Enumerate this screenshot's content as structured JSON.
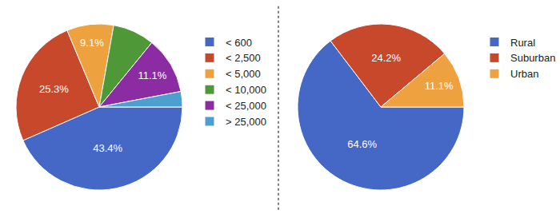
{
  "chart_data": [
    {
      "type": "pie",
      "categories": [
        "< 600",
        "< 2,500",
        "< 5,000",
        "< 10,000",
        "< 25,000",
        "> 25,000"
      ],
      "values": [
        43.4,
        25.3,
        9.1,
        8.1,
        11.1,
        3.0
      ],
      "value_labels": [
        "43.4%",
        "25.3%",
        "9.1%",
        null,
        "11.1%",
        null
      ],
      "colors": [
        "#4567c6",
        "#c8482c",
        "#eea23f",
        "#4e9838",
        "#8c2ca2",
        "#4d9fcf"
      ],
      "data_labels": true,
      "legend": "right"
    },
    {
      "type": "pie",
      "categories": [
        "Rural",
        "Suburban",
        "Urban"
      ],
      "values": [
        64.6,
        24.2,
        11.1
      ],
      "value_labels": [
        "64.6%",
        "24.2%",
        "11.1%"
      ],
      "colors": [
        "#4567c6",
        "#c8482c",
        "#eea23f"
      ],
      "data_labels": true,
      "legend": "right"
    }
  ]
}
